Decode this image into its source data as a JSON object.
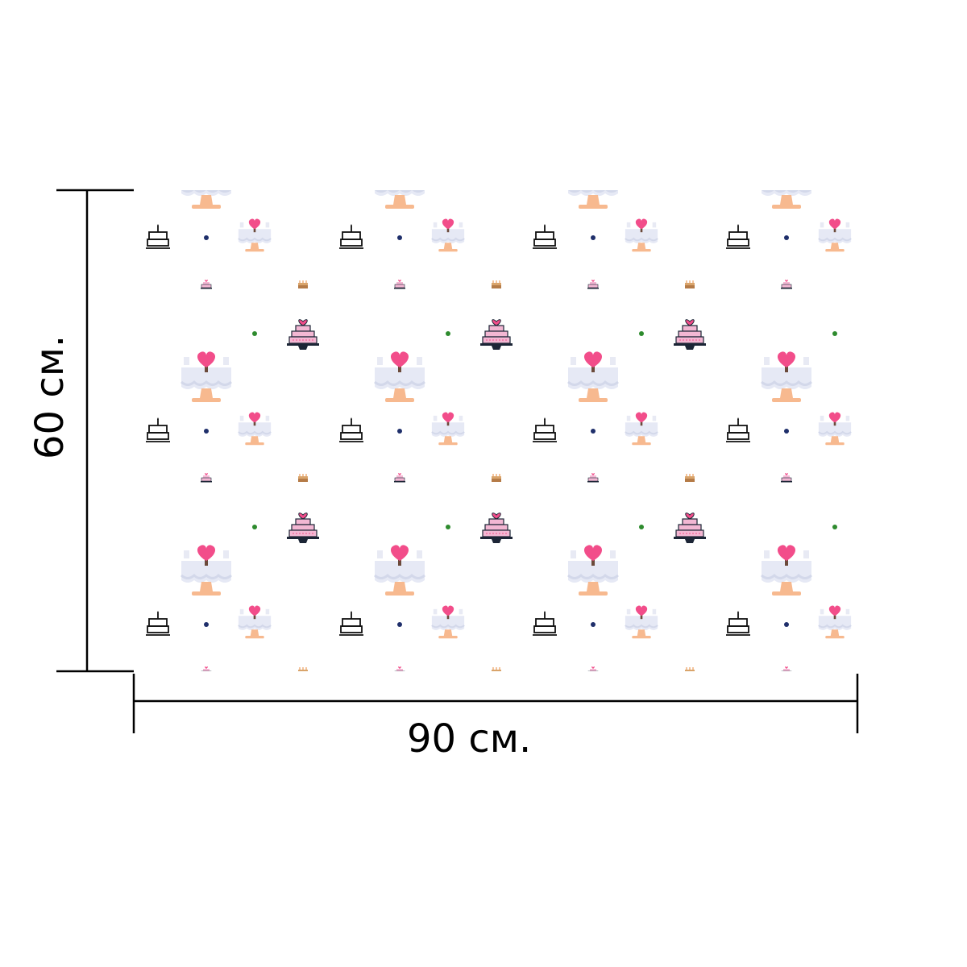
{
  "dimensions": {
    "width_label": "90 см.",
    "height_label": "60 см."
  },
  "fabric": {
    "background": "#ffffff",
    "motifs": [
      "wedding-table-with-hearts-icon",
      "birthday-cake-outline-icon",
      "small-navy-dot",
      "small-green-dot",
      "mini-layered-cake-icon",
      "tiered-pink-cake-icon"
    ],
    "colors": {
      "heart_pink": "#f24d8a",
      "tablecloth": "#e6e9f5",
      "table_leg": "#f7b98f",
      "cake_pink": "#f3b7d3",
      "cake_outline": "#1c2536",
      "navy_dot": "#1f2f6b",
      "green_dot": "#2e8b2e",
      "mini_cake_brown": "#b57b47"
    }
  }
}
